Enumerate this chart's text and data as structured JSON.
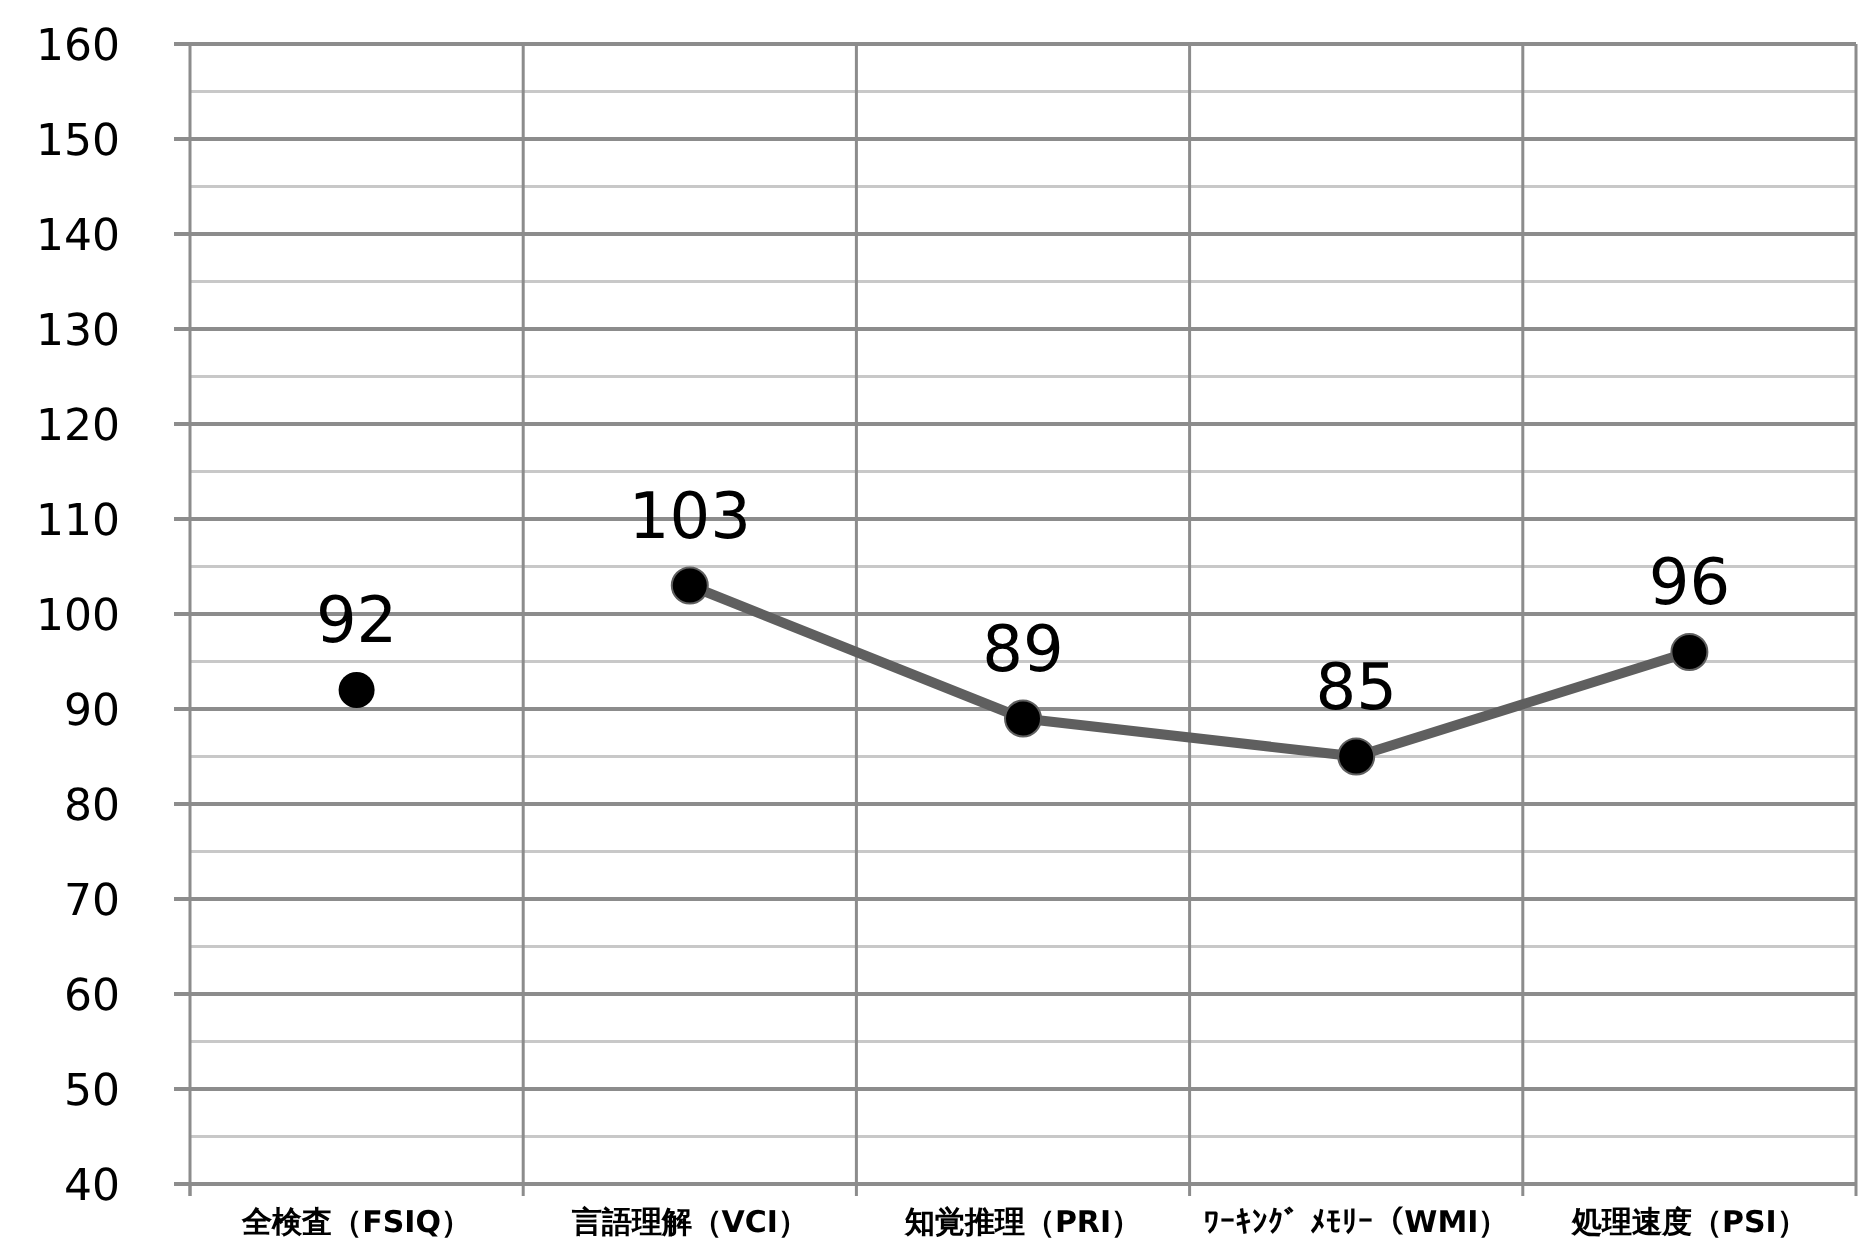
{
  "chart_data": {
    "type": "line",
    "categories": [
      "全検査（FSIQ）",
      "言語理解（VCI）",
      "知覚推理（PRI）",
      "ﾜｰｷﾝｸﾞ ﾒﾓﾘｰ（WMI）",
      "処理速度（PSI）"
    ],
    "series": [
      {
        "type": "scatter",
        "color": "#000000",
        "values": [
          92,
          null,
          null,
          null,
          null
        ]
      },
      {
        "color": "#5f5f5f",
        "values": [
          null,
          103,
          89,
          85,
          96
        ]
      }
    ],
    "ylim": [
      40,
      160
    ],
    "yticks": [
      40,
      50,
      60,
      70,
      80,
      90,
      100,
      110,
      120,
      130,
      140,
      150,
      160
    ],
    "grid": true,
    "marker": "circle",
    "data_labels": true
  }
}
